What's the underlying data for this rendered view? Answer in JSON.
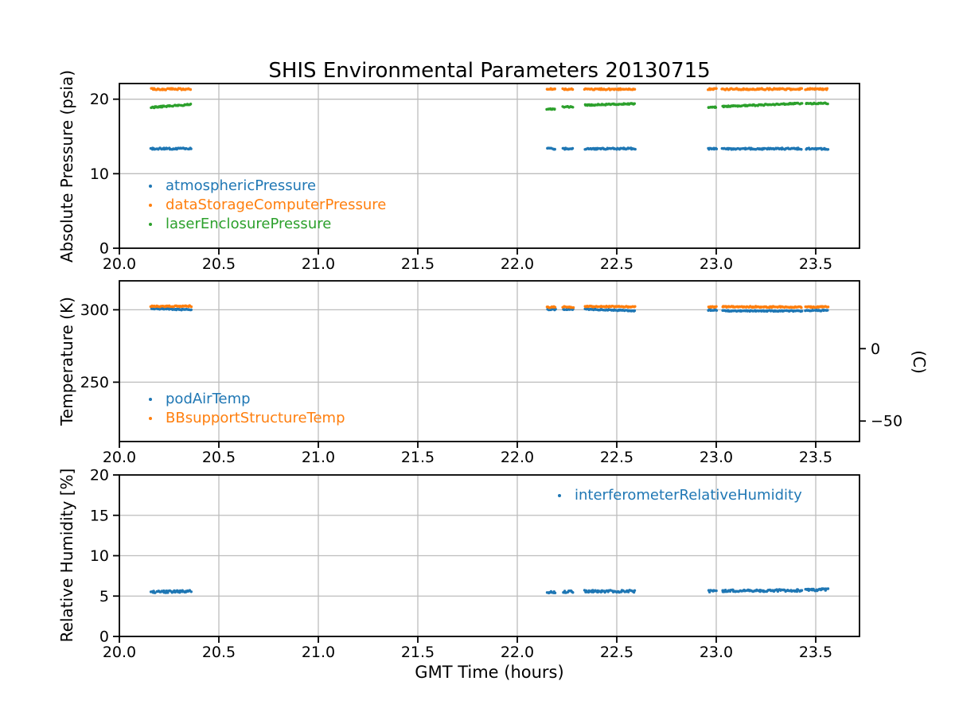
{
  "title": "SHIS Environmental Parameters 20130715",
  "xlabel": "GMT Time (hours)",
  "right_axis_label": "(C)",
  "colors": {
    "blue": "#1f77b4",
    "orange": "#ff7f0e",
    "green": "#2ca02c",
    "grid": "#bdbdbd",
    "spine": "#000000"
  },
  "xticks": [
    "20.0",
    "20.5",
    "21.0",
    "21.5",
    "22.0",
    "22.5",
    "23.0",
    "23.5"
  ],
  "xtick_values": [
    20.0,
    20.5,
    21.0,
    21.5,
    22.0,
    22.5,
    23.0,
    23.5
  ],
  "xlim": [
    20.0,
    23.72
  ],
  "segments_x": [
    [
      20.16,
      20.36
    ],
    [
      22.15,
      22.19
    ],
    [
      22.23,
      22.28
    ],
    [
      22.34,
      22.59
    ],
    [
      22.96,
      23.0
    ],
    [
      23.03,
      23.43
    ],
    [
      23.45,
      23.56
    ]
  ],
  "chart_data": [
    {
      "id": "pressure",
      "type": "scatter",
      "marker": "point",
      "ylabel": "Absolute Pressure (psia)",
      "ylim": [
        0,
        22.1
      ],
      "yticks": [
        0,
        10,
        20
      ],
      "grid": true,
      "legend_position": "lower-left",
      "series": [
        {
          "name": "atmosphericPressure",
          "color_key": "blue",
          "noise": 0.1,
          "segment_y": [
            [
              13.35,
              13.35
            ],
            [
              13.35,
              13.35
            ],
            [
              13.35,
              13.35
            ],
            [
              13.35,
              13.35
            ],
            [
              13.35,
              13.35
            ],
            [
              13.35,
              13.35
            ],
            [
              13.35,
              13.35
            ]
          ]
        },
        {
          "name": "dataStorageComputerPressure",
          "color_key": "orange",
          "noise": 0.1,
          "segment_y": [
            [
              21.35,
              21.35
            ],
            [
              21.35,
              21.35
            ],
            [
              21.35,
              21.35
            ],
            [
              21.35,
              21.35
            ],
            [
              21.35,
              21.35
            ],
            [
              21.35,
              21.35
            ],
            [
              21.35,
              21.35
            ]
          ]
        },
        {
          "name": "laserEnclosurePressure",
          "color_key": "green",
          "noise": 0.08,
          "segment_y": [
            [
              18.9,
              19.3
            ],
            [
              18.65,
              18.7
            ],
            [
              18.95,
              19.0
            ],
            [
              19.2,
              19.4
            ],
            [
              18.9,
              18.95
            ],
            [
              19.0,
              19.45
            ],
            [
              19.4,
              19.45
            ]
          ]
        }
      ]
    },
    {
      "id": "temperature",
      "type": "scatter",
      "marker": "point",
      "ylabel": "Temperature (K)",
      "ylim": [
        209,
        320
      ],
      "yticks": [
        250,
        300
      ],
      "right_ticks": [
        {
          "label": "0",
          "kelvin": 273.15
        },
        {
          "label": "−50",
          "kelvin": 223.15
        }
      ],
      "grid": true,
      "legend_position": "lower-left",
      "series": [
        {
          "name": "podAirTemp",
          "color_key": "blue",
          "noise": 0.35,
          "segment_y": [
            [
              300.8,
              300.0
            ],
            [
              300.2,
              300.2
            ],
            [
              300.3,
              300.3
            ],
            [
              300.4,
              299.3
            ],
            [
              299.8,
              299.8
            ],
            [
              299.3,
              299.2
            ],
            [
              299.5,
              299.5
            ]
          ]
        },
        {
          "name": "BBsupportStructureTemp",
          "color_key": "orange",
          "noise": 0.4,
          "segment_y": [
            [
              302.4,
              302.5
            ],
            [
              301.8,
              301.8
            ],
            [
              301.9,
              301.9
            ],
            [
              302.3,
              302.1
            ],
            [
              302.0,
              302.0
            ],
            [
              302.1,
              301.9
            ],
            [
              301.9,
              302.0
            ]
          ]
        }
      ]
    },
    {
      "id": "humidity",
      "type": "scatter",
      "marker": "point",
      "ylabel": "Relative Humidity [%]",
      "ylim": [
        0,
        20
      ],
      "yticks": [
        0,
        5,
        10,
        15,
        20
      ],
      "grid": true,
      "legend_position": "upper-right",
      "series": [
        {
          "name": "interferometerRelativeHumidity",
          "color_key": "blue",
          "noise": 0.13,
          "segment_y": [
            [
              5.5,
              5.6
            ],
            [
              5.45,
              5.5
            ],
            [
              5.5,
              5.55
            ],
            [
              5.6,
              5.6
            ],
            [
              5.6,
              5.65
            ],
            [
              5.65,
              5.7
            ],
            [
              5.75,
              5.8
            ]
          ]
        }
      ]
    }
  ]
}
